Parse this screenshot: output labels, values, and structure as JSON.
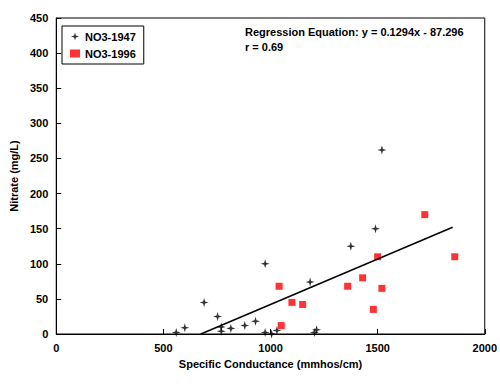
{
  "chart_data": {
    "type": "scatter",
    "x_label": "Specific Conductance (mmhos/cm)",
    "y_label": "Nitrate (mg/L)",
    "annotations": [
      "Regression Equation: y = 0.1294x - 87.296",
      "r = 0.69"
    ],
    "xlim": [
      0,
      2000
    ],
    "xticks": [
      0,
      500,
      1000,
      1500,
      2000
    ],
    "ylim": [
      0,
      450
    ],
    "yticks": [
      0,
      50,
      100,
      150,
      200,
      250,
      300,
      350,
      400,
      450
    ],
    "grid": false,
    "legend": "upper left",
    "series": [
      {
        "name": "NO3-1947",
        "type": "scatter",
        "color": "#000000",
        "marker": "asterisk",
        "x": [
          560,
          600,
          690,
          753,
          770,
          770,
          815,
          880,
          930,
          975,
          975,
          1005,
          1030,
          1185,
          1205,
          1215,
          1375,
          1490,
          1520
        ],
        "values": [
          2,
          9,
          45,
          25,
          4,
          10,
          8,
          12,
          18,
          100,
          2,
          0,
          5,
          74,
          2,
          6,
          125,
          150,
          262
        ]
      },
      {
        "name": "NO3-1996",
        "type": "scatter",
        "color": "#ff0000",
        "marker": "square",
        "x": [
          1040,
          1050,
          1100,
          1150,
          1360,
          1430,
          1480,
          1500,
          1520,
          1720,
          1860
        ],
        "values": [
          68,
          12,
          45,
          42,
          68,
          80,
          35,
          110,
          65,
          170,
          110
        ]
      },
      {
        "type": "line",
        "color": "#000000",
        "line_style": "solid",
        "x": [
          675,
          1850
        ],
        "values": [
          0,
          152
        ]
      }
    ]
  }
}
